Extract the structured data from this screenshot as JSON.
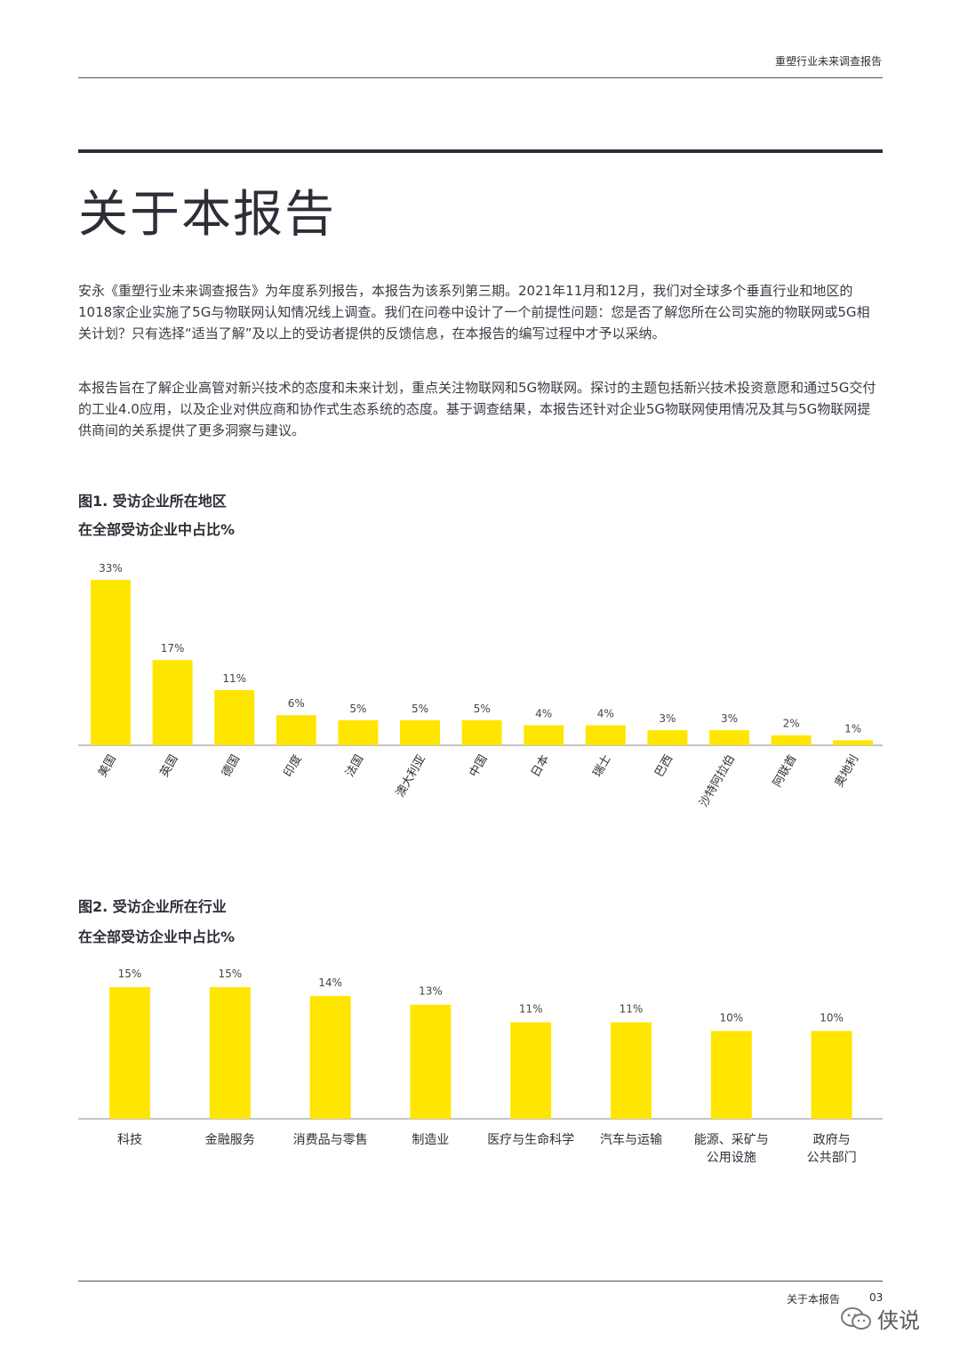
{
  "header": {
    "title": "重塑行业未来调查报告"
  },
  "page_title": "关于本报告",
  "paragraphs": [
    "安永《重塑行业未来调查报告》为年度系列报告，本报告为该系列第三期。2021年11月和12月，我们对全球多个垂直行业和地区的1018家企业实施了5G与物联网认知情况线上调查。我们在问卷中设计了一个前提性问题：您是否了解您所在公司实施的物联网或5G相关计划？只有选择“适当了解”及以上的受访者提供的反馈信息，在本报告的编写过程中才予以采纳。",
    "本报告旨在了解企业高管对新兴技术的态度和未来计划，重点关注物联网和5G物联网。探讨的主题包括新兴技术投资意愿和通过5G交付的工业4.0应用，以及企业对供应商和协作式生态系统的态度。基于调查结果，本报告还针对企业5G物联网使用情况及其与5G物联网提供商间的关系提供了更多洞察与建议。"
  ],
  "figures": [
    {
      "title": "图1. 受访企业所在地区",
      "subtitle": "在全部受访企业中占比%"
    },
    {
      "title": "图2. 受访企业所在行业",
      "subtitle": "在全部受访企业中占比%"
    }
  ],
  "chart_data": [
    {
      "type": "bar",
      "title": "图1. 受访企业所在地区",
      "subtitle": "在全部受访企业中占比%",
      "categories": [
        "美国",
        "英国",
        "德国",
        "印度",
        "法国",
        "澳大利亚",
        "中国",
        "日本",
        "瑞士",
        "巴西",
        "沙特阿拉伯",
        "阿联酋",
        "奥地利"
      ],
      "values": [
        33,
        17,
        11,
        6,
        5,
        5,
        5,
        4,
        4,
        3,
        3,
        2,
        1
      ],
      "value_labels": [
        "33%",
        "17%",
        "11%",
        "6%",
        "5%",
        "5%",
        "5%",
        "4%",
        "4%",
        "3%",
        "3%",
        "2%",
        "1%"
      ],
      "ylim": [
        0,
        33
      ],
      "bar_color": "#ffe600",
      "grid": false
    },
    {
      "type": "bar",
      "title": "图2. 受访企业所在行业",
      "subtitle": "在全部受访企业中占比%",
      "categories": [
        "科技",
        "金融服务",
        "消费品与零售",
        "制造业",
        "医疗与生命科学",
        "汽车与运输",
        "能源、采矿与\n公用设施",
        "政府与\n公共部门"
      ],
      "values": [
        15,
        15,
        14,
        13,
        11,
        11,
        10,
        10
      ],
      "value_labels": [
        "15%",
        "15%",
        "14%",
        "13%",
        "11%",
        "11%",
        "10%",
        "10%"
      ],
      "ylim": [
        0,
        15
      ],
      "bar_color": "#ffe600",
      "grid": false
    }
  ],
  "footer": {
    "label": "关于本报告",
    "page": "03"
  },
  "watermark": {
    "text": "侠说",
    "icon": "wechat-icon"
  }
}
